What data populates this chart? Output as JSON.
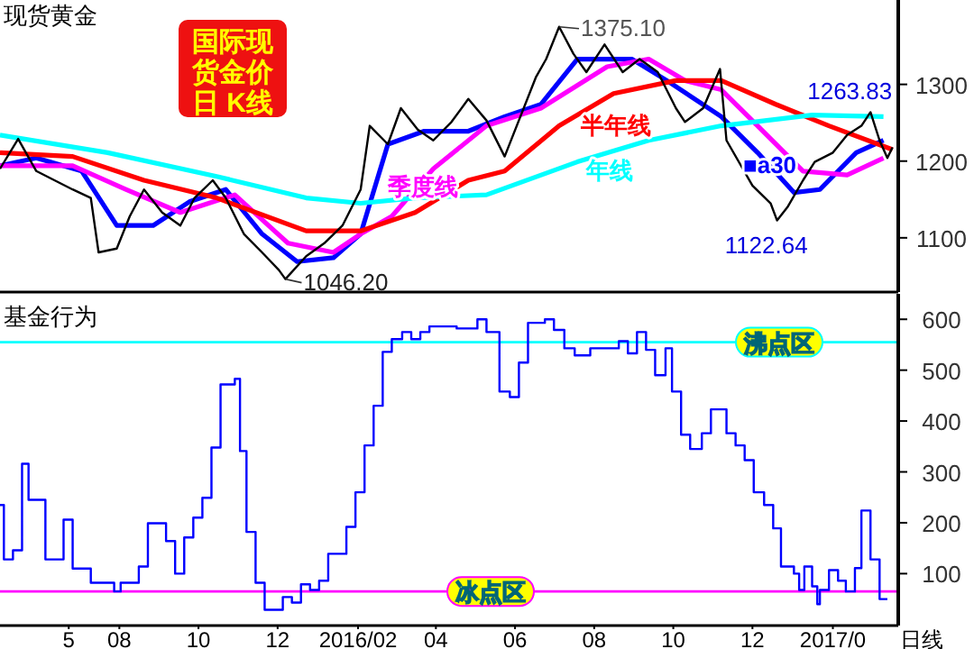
{
  "chart_data": [
    {
      "type": "line",
      "title": "现货黄金",
      "xlim": [
        "2015-05-01",
        "2017-03-22"
      ],
      "ylim": [
        1034,
        1410
      ],
      "yticks": [
        1100,
        1200,
        1300
      ],
      "tick_labels": "y",
      "grid": false,
      "legend": false,
      "marker": "none",
      "line_style": "solid",
      "annotations": [
        "国际现",
        "货金价",
        "日 K线",
        {
          "text": "1375.10",
          "x": "2016-07-05",
          "y": 1375.1
        },
        {
          "text": "1046.20",
          "x": "2015-12-07",
          "y": 1046.2
        },
        {
          "text": "1122.64",
          "x": "2016-12-20",
          "y": 1122.64
        },
        {
          "text": "1263.83",
          "x": "2017-03-02",
          "y": 1263.83
        }
      ],
      "series": [
        {
          "color": "#000000",
          "x": [
            "2015-05-01",
            "2015-05-15",
            "2015-05-29",
            "2015-06-12",
            "2015-06-26",
            "2015-07-10",
            "2015-07-16",
            "2015-07-30",
            "2015-08-09",
            "2015-08-20",
            "2015-09-03",
            "2015-09-17",
            "2015-09-28",
            "2015-10-12",
            "2015-10-22",
            "2015-11-05",
            "2015-11-19",
            "2015-12-02",
            "2015-12-07",
            "2015-12-23",
            "2016-01-06",
            "2016-01-20",
            "2016-02-03",
            "2016-02-10",
            "2016-02-24",
            "2016-03-05",
            "2016-03-18",
            "2016-03-30",
            "2016-04-13",
            "2016-04-26",
            "2016-05-10",
            "2016-05-24",
            "2016-06-17",
            "2016-06-25",
            "2016-07-05",
            "2016-07-16",
            "2016-07-26",
            "2016-08-09",
            "2016-08-23",
            "2016-09-05",
            "2016-09-19",
            "2016-10-03",
            "2016-10-10",
            "2016-10-24",
            "2016-11-06",
            "2016-11-11",
            "2016-12-01",
            "2016-12-15",
            "2016-12-20",
            "2016-12-28",
            "2017-01-09",
            "2017-01-18",
            "2017-02-01",
            "2017-02-12",
            "2017-02-23",
            "2017-03-02",
            "2017-03-09",
            "2017-03-15",
            "2017-03-19"
          ],
          "values": [
            1190,
            1229,
            1187,
            1175,
            1163,
            1152,
            1081,
            1086,
            1128,
            1163,
            1133,
            1116,
            1152,
            1175,
            1152,
            1105,
            1081,
            1058,
            1046.2,
            1076,
            1093,
            1116,
            1163,
            1246,
            1222,
            1269,
            1241,
            1227,
            1251,
            1281,
            1253,
            1206,
            1309,
            1333,
            1375.1,
            1340,
            1316,
            1352,
            1316,
            1333,
            1316,
            1269,
            1251,
            1269,
            1320,
            1227,
            1168,
            1145,
            1122.64,
            1140,
            1175,
            1199,
            1211,
            1234,
            1246,
            1263.83,
            1227,
            1204,
            1218
          ]
        },
        {
          "name": "■a30",
          "color": "#0000ff",
          "x": [
            "2015-05-01",
            "2015-05-29",
            "2015-07-03",
            "2015-07-30",
            "2015-08-27",
            "2015-09-24",
            "2015-10-22",
            "2015-11-19",
            "2015-12-16",
            "2016-01-13",
            "2016-02-03",
            "2016-02-24",
            "2016-03-23",
            "2016-04-26",
            "2016-05-24",
            "2016-06-21",
            "2016-07-19",
            "2016-08-30",
            "2016-09-26",
            "2016-11-07",
            "2016-12-05",
            "2017-01-02",
            "2017-01-22",
            "2017-02-19",
            "2017-03-12"
          ],
          "values": [
            1194,
            1204,
            1187,
            1116,
            1116,
            1147,
            1163,
            1105,
            1069,
            1074,
            1105,
            1222,
            1239,
            1239,
            1258,
            1274,
            1333,
            1333,
            1305,
            1258,
            1211,
            1159,
            1163,
            1211,
            1227
          ]
        },
        {
          "name": "季度线",
          "color": "#ff00ff",
          "x": [
            "2015-05-01",
            "2015-06-26",
            "2015-08-06",
            "2015-09-17",
            "2015-10-29",
            "2015-12-09",
            "2016-01-13",
            "2016-02-03",
            "2016-02-27",
            "2016-03-30",
            "2016-05-10",
            "2016-06-21",
            "2016-08-11",
            "2016-09-12",
            "2016-10-10",
            "2016-11-07",
            "2016-12-05",
            "2017-01-09",
            "2017-02-12",
            "2017-03-12"
          ],
          "values": [
            1194,
            1194,
            1163,
            1133,
            1156,
            1093,
            1081,
            1105,
            1128,
            1190,
            1246,
            1269,
            1323,
            1333,
            1305,
            1293,
            1246,
            1187,
            1182,
            1204
          ]
        },
        {
          "name": "半年线",
          "color": "#ff0000",
          "x": [
            "2015-05-01",
            "2015-06-26",
            "2015-08-20",
            "2015-10-15",
            "2015-12-23",
            "2016-02-03",
            "2016-03-16",
            "2016-04-26",
            "2016-05-24",
            "2016-07-05",
            "2016-08-16",
            "2016-10-03",
            "2016-11-07",
            "2016-12-19",
            "2017-01-29",
            "2017-03-19"
          ],
          "values": [
            1211,
            1206,
            1175,
            1152,
            1109,
            1109,
            1133,
            1175,
            1187,
            1246,
            1288,
            1305,
            1305,
            1274,
            1246,
            1215
          ]
        },
        {
          "name": "年线",
          "color": "#00ffff",
          "x": [
            "2015-05-01",
            "2015-07-23",
            "2015-10-15",
            "2015-12-23",
            "2016-02-03",
            "2016-03-16",
            "2016-05-10",
            "2016-07-19",
            "2016-09-12",
            "2016-11-07",
            "2017-01-16",
            "2017-03-12"
          ],
          "values": [
            1234,
            1211,
            1180,
            1152,
            1145,
            1152,
            1156,
            1199,
            1227,
            1246,
            1260,
            1258
          ]
        }
      ]
    },
    {
      "type": "step",
      "title": "基金行为",
      "xlabel": "日线",
      "xlim": [
        "2015-05-01",
        "2017-03-22"
      ],
      "ylim": [
        5,
        650
      ],
      "yticks": [
        100,
        200,
        300,
        400,
        500,
        600
      ],
      "grid": false,
      "legend": false,
      "marker": "none",
      "line_style": "solid",
      "xticks": [
        {
          "value": "2015-06-23",
          "label": "5"
        },
        {
          "value": "2015-08-01",
          "label": "08"
        },
        {
          "value": "2015-10-01",
          "label": "10"
        },
        {
          "value": "2015-12-01",
          "label": "12"
        },
        {
          "value": "2016-02-01",
          "label": "2016/02"
        },
        {
          "value": "2016-04-01",
          "label": "04"
        },
        {
          "value": "2016-06-01",
          "label": "06"
        },
        {
          "value": "2016-08-01",
          "label": "08"
        },
        {
          "value": "2016-10-01",
          "label": "10"
        },
        {
          "value": "2016-12-01",
          "label": "12"
        },
        {
          "value": "2017-02-01",
          "label": "2017/0"
        }
      ],
      "ref_lines": [
        {
          "axis": "y",
          "value": 555,
          "label": "沸点区",
          "color": "#00ffff"
        },
        {
          "axis": "y",
          "value": 65,
          "label": "冰点区",
          "color": "#ff00ff"
        }
      ],
      "series": [
        {
          "color": "#0000ff",
          "x": [
            "2015-05-01",
            "2015-05-04",
            "2015-05-11",
            "2015-05-18",
            "2015-05-23",
            "2015-06-05",
            "2015-06-19",
            "2015-06-26",
            "2015-07-10",
            "2015-07-28",
            "2015-08-02",
            "2015-08-16",
            "2015-08-23",
            "2015-09-06",
            "2015-09-13",
            "2015-09-20",
            "2015-09-27",
            "2015-10-04",
            "2015-10-11",
            "2015-10-18",
            "2015-10-29",
            "2015-11-02",
            "2015-11-07",
            "2015-11-14",
            "2015-11-21",
            "2015-12-05",
            "2015-12-12",
            "2015-12-19",
            "2015-12-26",
            "2016-01-02",
            "2016-01-09",
            "2016-01-23",
            "2016-01-30",
            "2016-02-06",
            "2016-02-13",
            "2016-02-20",
            "2016-02-27",
            "2016-03-06",
            "2016-03-13",
            "2016-03-20",
            "2016-03-27",
            "2016-04-17",
            "2016-05-03",
            "2016-05-10",
            "2016-05-20",
            "2016-05-28",
            "2016-06-04",
            "2016-06-11",
            "2016-06-24",
            "2016-07-01",
            "2016-07-09",
            "2016-07-17",
            "2016-07-29",
            "2016-08-20",
            "2016-08-27",
            "2016-09-03",
            "2016-09-10",
            "2016-09-17",
            "2016-09-25",
            "2016-09-30",
            "2016-10-07",
            "2016-10-14",
            "2016-10-23",
            "2016-10-30",
            "2016-11-11",
            "2016-11-18",
            "2016-11-25",
            "2016-12-02",
            "2016-12-10",
            "2016-12-17",
            "2016-12-23",
            "2017-01-02",
            "2017-01-06",
            "2017-01-10",
            "2017-01-16",
            "2017-01-20",
            "2017-01-22",
            "2017-01-29",
            "2017-02-05",
            "2017-02-11",
            "2017-02-18",
            "2017-02-23",
            "2017-03-02",
            "2017-03-09",
            "2017-03-15"
          ],
          "values": [
            235,
            128,
            146,
            316,
            245,
            128,
            206,
            110,
            82,
            65,
            82,
            114,
            199,
            164,
            100,
            171,
            210,
            249,
            348,
            472,
            483,
            341,
            182,
            82,
            29,
            54,
            43,
            79,
            68,
            86,
            139,
            192,
            260,
            352,
            430,
            536,
            561,
            575,
            561,
            575,
            586,
            582,
            600,
            575,
            458,
            447,
            515,
            593,
            600,
            579,
            543,
            529,
            543,
            557,
            533,
            575,
            540,
            490,
            543,
            458,
            373,
            345,
            376,
            423,
            376,
            352,
            323,
            260,
            235,
            189,
            114,
            100,
            68,
            114,
            75,
            40,
            68,
            107,
            86,
            65,
            111,
            224,
            128,
            50,
            50
          ]
        }
      ]
    }
  ]
}
